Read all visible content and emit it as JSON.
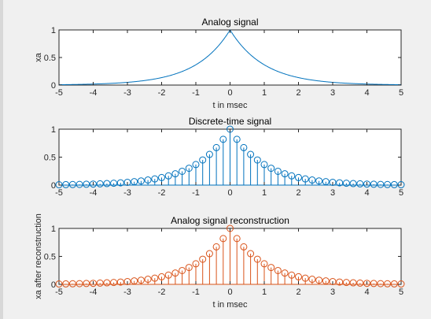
{
  "chart_data": [
    {
      "type": "line",
      "title": "Analog signal",
      "xlabel": "t in msec",
      "ylabel": "xa",
      "xlim": [
        -5,
        5
      ],
      "ylim": [
        0,
        1
      ],
      "xticks": [
        -5,
        -4,
        -3,
        -2,
        -1,
        0,
        1,
        2,
        3,
        4,
        5
      ],
      "yticks": [
        0,
        0.5,
        1
      ],
      "series": [
        {
          "function": "exp(-|t|)",
          "t_start": -5,
          "t_end": 5,
          "t_step": 0.02,
          "color": "#0072bd"
        }
      ]
    },
    {
      "type": "stem",
      "title": "Discrete-time signal",
      "xlabel": "",
      "ylabel": "",
      "xlim": [
        -5,
        5
      ],
      "ylim": [
        0,
        1
      ],
      "xticks": [
        -5,
        -4,
        -3,
        -2,
        -1,
        0,
        1,
        2,
        3,
        4,
        5
      ],
      "yticks": [
        0,
        0.5,
        1
      ],
      "series": [
        {
          "function": "exp(-|n*Ts|)",
          "t_start": -5,
          "t_end": 5,
          "t_step": 0.2,
          "color": "#0072bd"
        }
      ]
    },
    {
      "type": "stem",
      "title": "Analog signal reconstruction",
      "xlabel": "t in msec",
      "ylabel": "xa after reconstruction",
      "xlim": [
        -5,
        5
      ],
      "ylim": [
        0,
        1
      ],
      "xticks": [
        -5,
        -4,
        -3,
        -2,
        -1,
        0,
        1,
        2,
        3,
        4,
        5
      ],
      "yticks": [
        0,
        0.5,
        1
      ],
      "series": [
        {
          "function": "exp(-|t|)",
          "t_start": -5,
          "t_end": 5,
          "t_step": 0.2,
          "color": "#d95319"
        }
      ]
    }
  ]
}
